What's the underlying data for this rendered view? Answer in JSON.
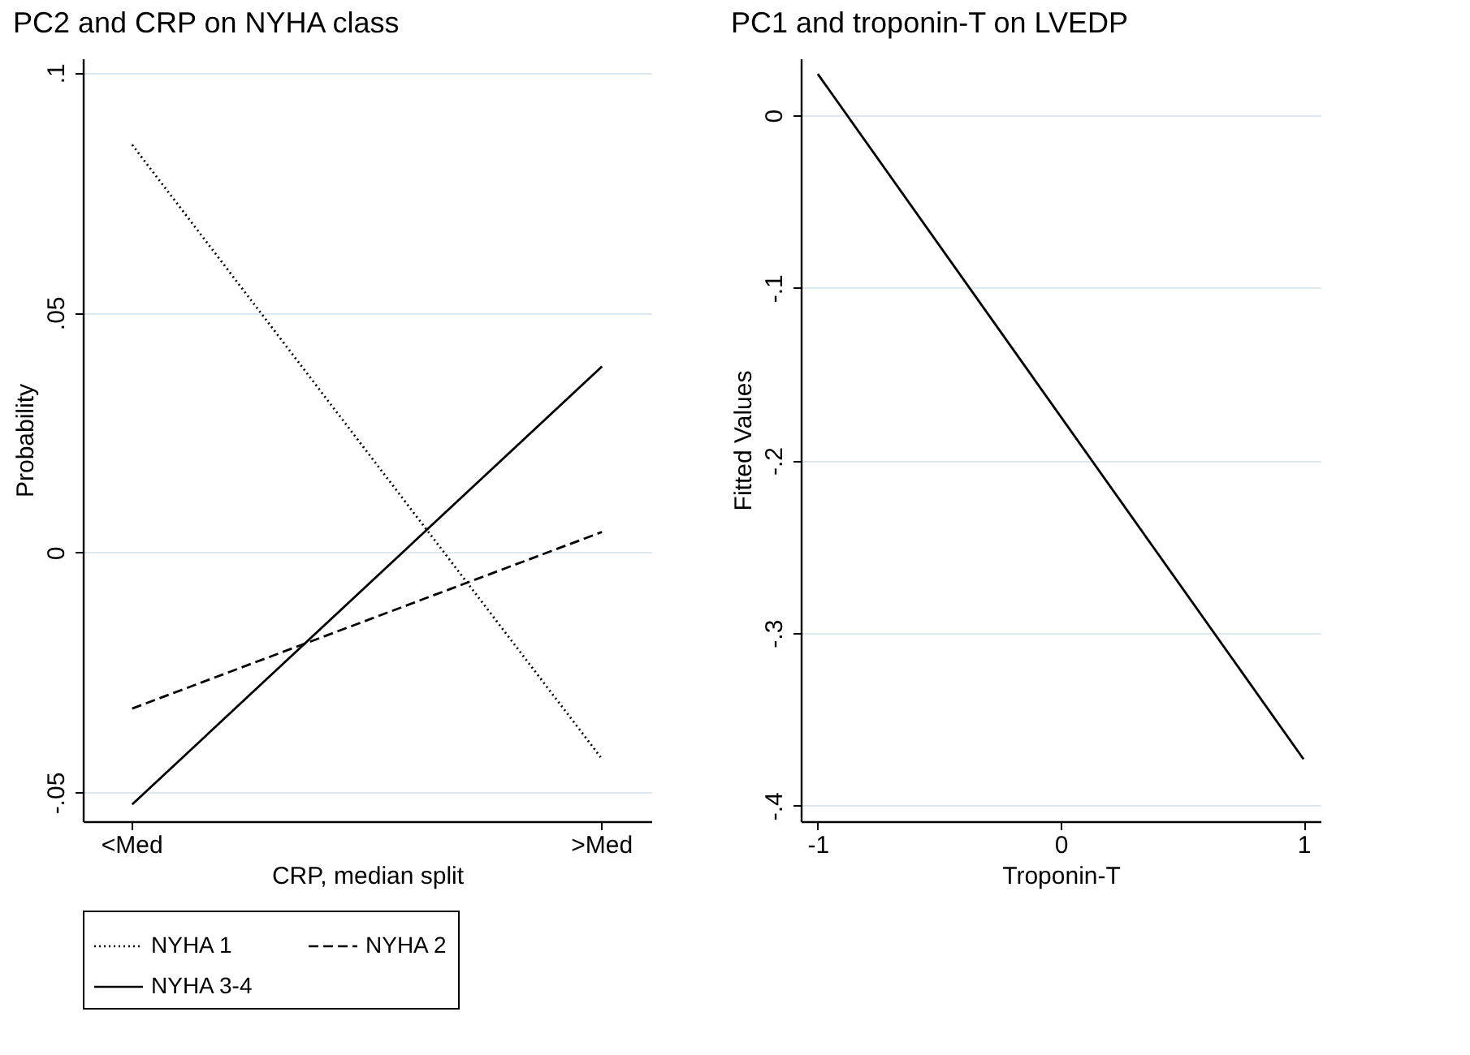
{
  "chart_data": [
    {
      "type": "line",
      "title": "PC2 and CRP on NYHA class",
      "xlabel": "CRP, median split",
      "ylabel": "Probability",
      "categories": [
        "<Med",
        ">Med"
      ],
      "ylim": [
        -0.056,
        0.103
      ],
      "yticks": [
        {
          "value": -0.05,
          "label": "-.05"
        },
        {
          "value": 0,
          "label": "0"
        },
        {
          "value": 0.05,
          "label": ".05"
        },
        {
          "value": 0.1,
          "label": ".1"
        }
      ],
      "grid": "y",
      "legend": "bottom",
      "series": [
        {
          "name": "NYHA 1",
          "color": "#000000",
          "line_style": "dotted",
          "values": [
            0.085,
            -0.043
          ]
        },
        {
          "name": "NYHA 2",
          "color": "#000000",
          "line_style": "dashed",
          "values": [
            -0.0325,
            0.0043
          ]
        },
        {
          "name": "NYHA 3-4",
          "color": "#000000",
          "line_style": "solid",
          "values": [
            -0.0525,
            0.0388
          ]
        }
      ]
    },
    {
      "type": "line",
      "title": "PC1 and troponin-T on LVEDP",
      "xlabel": "Troponin-T",
      "ylabel": "Fitted Values",
      "xlim": [
        -1.07,
        1.07
      ],
      "xticks": [
        -1,
        0,
        1
      ],
      "ylim": [
        -0.409,
        0.033
      ],
      "yticks": [
        {
          "value": -0.4,
          "label": "-.4"
        },
        {
          "value": -0.3,
          "label": "-.3"
        },
        {
          "value": -0.2,
          "label": "-.2"
        },
        {
          "value": -0.1,
          "label": "-.1"
        },
        {
          "value": 0,
          "label": "0"
        }
      ],
      "grid": "y",
      "series": [
        {
          "color": "#000000",
          "line_style": "solid",
          "x": [
            -1,
            1
          ],
          "values": [
            0.024,
            -0.373
          ]
        }
      ]
    }
  ]
}
